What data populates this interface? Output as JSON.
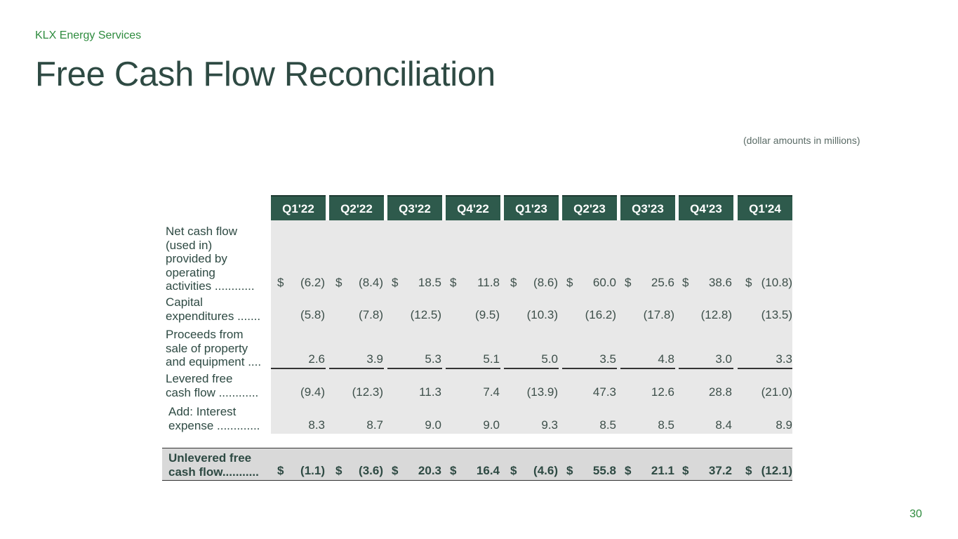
{
  "company": "KLX Energy Services",
  "title": "Free Cash Flow Reconciliation",
  "note": "(dollar amounts in millions)",
  "page_number": "30",
  "table": {
    "columns": [
      "Q1'22",
      "Q2'22",
      "Q3'22",
      "Q4'22",
      "Q1'23",
      "Q2'23",
      "Q3'23",
      "Q4'23",
      "Q1'24"
    ],
    "rows": [
      {
        "label_lines": [
          "Net cash flow",
          "(used in)",
          "provided by",
          "operating",
          "activities ............"
        ],
        "dollar": true,
        "values": [
          "(6.2)",
          "(8.4)",
          "18.5",
          "11.8",
          "(8.6)",
          "60.0",
          "25.6",
          "38.6",
          "(10.8)"
        ]
      },
      {
        "label_lines": [
          "Capital",
          "expenditures ......."
        ],
        "dollar": false,
        "values": [
          "(5.8)",
          "(7.8)",
          "(12.5)",
          "(9.5)",
          "(10.3)",
          "(16.2)",
          "(17.8)",
          "(12.8)",
          "(13.5)"
        ]
      },
      {
        "label_lines": [
          "Proceeds from",
          "sale of property",
          "and equipment ...."
        ],
        "dollar": false,
        "values": [
          "2.6",
          "3.9",
          "5.3",
          "5.1",
          "5.0",
          "3.5",
          "4.8",
          "3.0",
          "3.3"
        ]
      },
      {
        "label_lines": [
          "Levered free",
          "cash flow ............"
        ],
        "dollar": false,
        "values": [
          "(9.4)",
          "(12.3)",
          "11.3",
          "7.4",
          "(13.9)",
          "47.3",
          "12.6",
          "28.8",
          "(21.0)"
        ]
      },
      {
        "label_lines": [
          "Add: Interest",
          "expense ............."
        ],
        "dollar": false,
        "values": [
          "8.3",
          "8.7",
          "9.0",
          "9.0",
          "9.3",
          "8.5",
          "8.5",
          "8.4",
          "8.9"
        ]
      },
      {
        "label_lines": [
          "Unlevered free",
          "cash flow..........."
        ],
        "dollar": true,
        "values": [
          "(1.1)",
          "(3.6)",
          "20.3",
          "16.4",
          "(4.6)",
          "55.8",
          "21.1",
          "37.2",
          "(12.1)"
        ]
      }
    ],
    "currency_symbol": "$"
  },
  "colors": {
    "header_bg": "#2e5a4c",
    "title": "#2e4a43",
    "accent": "#2e8b3e",
    "shade": "#e8e8e8"
  }
}
